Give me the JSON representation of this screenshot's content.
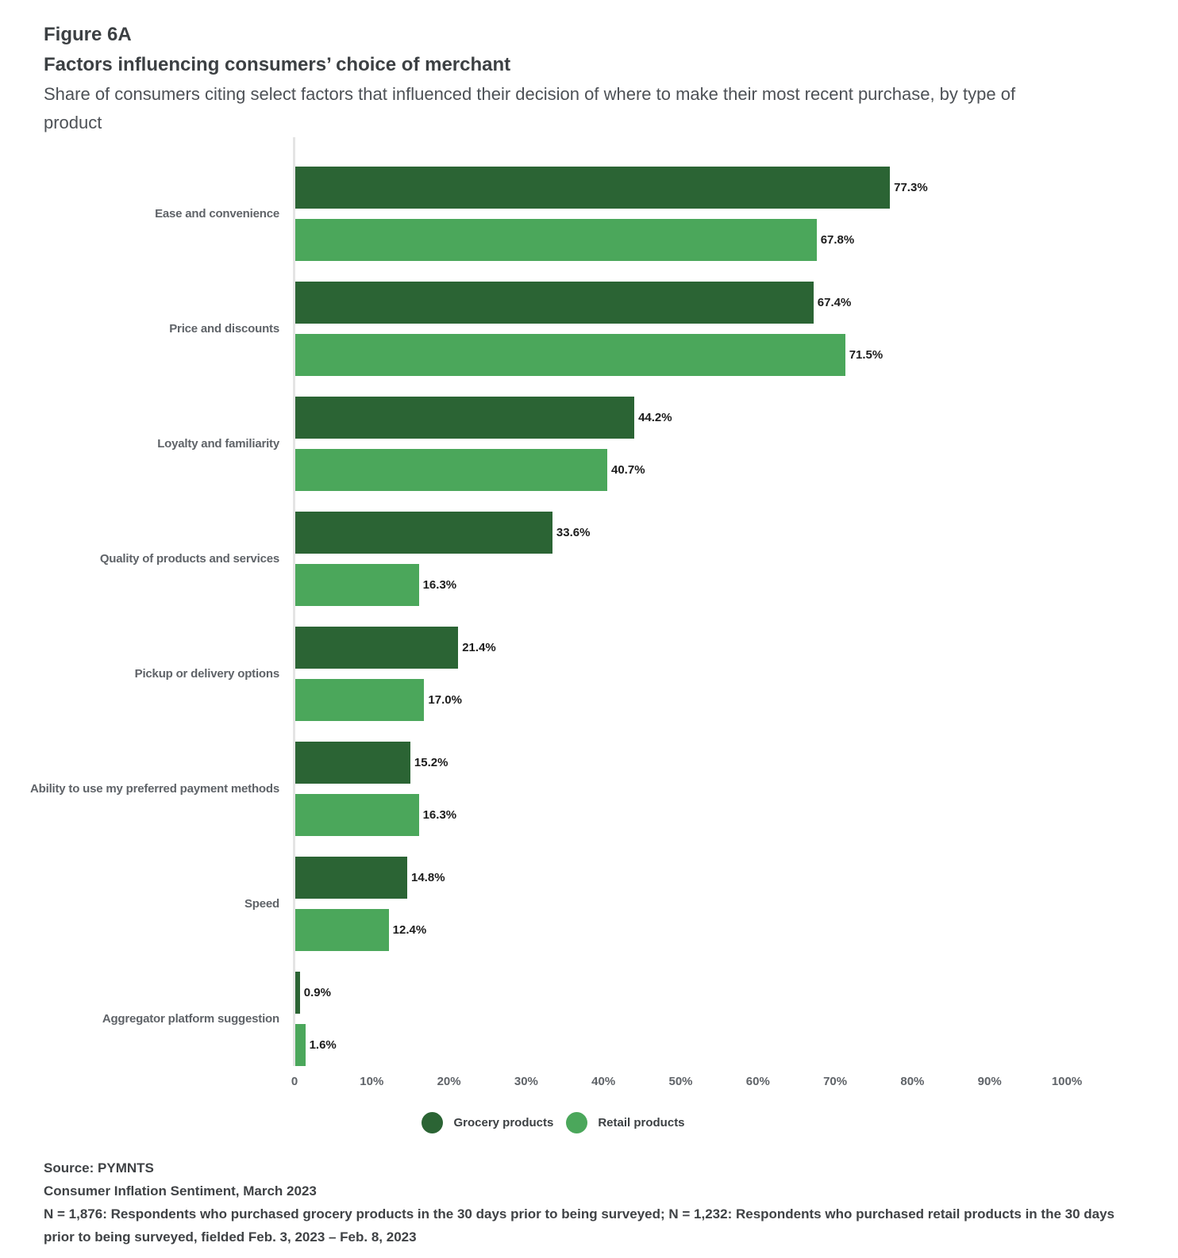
{
  "chart_data": {
    "type": "bar",
    "orientation": "horizontal",
    "figure_label": "Figure 6A",
    "title": "Factors influencing consumers’ choice of merchant",
    "subtitle": "Share of consumers citing select factors that influenced their decision of where to make their most recent purchase, by type of product",
    "categories": [
      "Ease and convenience",
      "Price and discounts",
      "Loyalty and familiarity",
      "Quality of products and services",
      "Pickup or delivery options",
      "Ability to use my preferred payment methods",
      "Speed",
      "Aggregator platform suggestion"
    ],
    "series": [
      {
        "name": "Grocery products",
        "color": "#2b6434",
        "values": [
          77.3,
          67.4,
          44.2,
          33.6,
          21.4,
          15.2,
          14.8,
          0.9
        ],
        "labels": [
          "77.3%",
          "67.4%",
          "44.2%",
          "33.6%",
          "21.4%",
          "15.2%",
          "14.8%",
          "0.9%"
        ]
      },
      {
        "name": "Retail products",
        "color": "#4ba75b",
        "values": [
          67.8,
          71.5,
          40.7,
          16.3,
          17.0,
          16.3,
          12.4,
          1.6
        ],
        "labels": [
          "67.8%",
          "71.5%",
          "40.7%",
          "16.3%",
          "17.0%",
          "16.3%",
          "12.4%",
          "1.6%"
        ]
      }
    ],
    "x_ticks": [
      "0",
      "10%",
      "20%",
      "30%",
      "40%",
      "50%",
      "60%",
      "70%",
      "80%",
      "90%",
      "100%"
    ],
    "xlim": [
      0,
      100
    ],
    "grid": false,
    "legend_position": "bottom"
  },
  "footer": {
    "source": "Source: PYMNTS",
    "report": "Consumer Inflation Sentiment, March 2023",
    "note": "N = 1,876: Respondents who purchased grocery products in the 30 days prior to being surveyed; N = 1,232: Respondents who purchased retail products in the 30 days prior to being surveyed, fielded Feb. 3, 2023 – Feb. 8, 2023"
  }
}
